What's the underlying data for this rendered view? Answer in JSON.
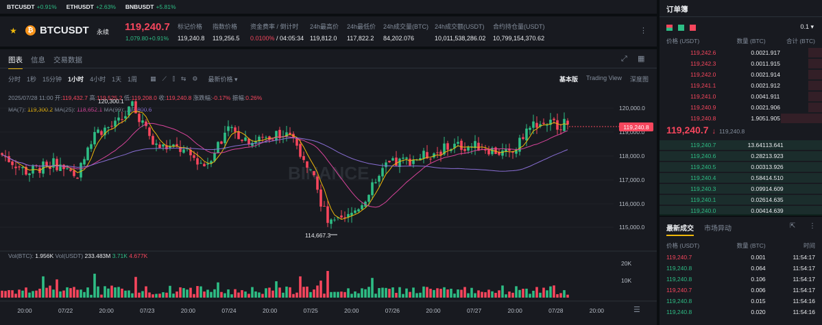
{
  "ticker": [
    {
      "sym": "BTCUSDT",
      "chg": "+0.91%"
    },
    {
      "sym": "ETHUSDT",
      "chg": "+2.63%"
    },
    {
      "sym": "BNBUSDT",
      "chg": "+5.81%"
    }
  ],
  "header": {
    "symbol": "BTCUSDT",
    "type": "永续",
    "price": "119,240.7",
    "change_abs": "1,079.80",
    "change_pct": "+0.91%",
    "stats": [
      {
        "label": "标记价格",
        "value": "119,240.8"
      },
      {
        "label": "指数价格",
        "value": "119,256.5"
      },
      {
        "label": "资金费率 / 倒计时",
        "value_a": "0.0100%",
        "value_b": "/ 04:05:34"
      },
      {
        "label": "24h最高价",
        "value": "119,812.0"
      },
      {
        "label": "24h最低价",
        "value": "117,822.2"
      },
      {
        "label": "24h成交量(BTC)",
        "value": "84,202.076"
      },
      {
        "label": "24h成交额(USDT)",
        "value": "10,011,538,286.02"
      },
      {
        "label": "合约持仓量(USDT)",
        "value": "10,799,154,370.62"
      }
    ]
  },
  "tabs": [
    "图表",
    "信息",
    "交易数据"
  ],
  "intervals": [
    "分时",
    "1秒",
    "15分钟",
    "1小时",
    "4小时",
    "1天",
    "1周"
  ],
  "latest_price_label": "最新价格",
  "views": [
    "基本版",
    "Trading View",
    "深度图"
  ],
  "ohlc": {
    "date": "2025/07/28 11:00",
    "open_label": "开:",
    "open": "119,432.7",
    "high_label": "高:",
    "high": "119,525.2",
    "low_label": "低:",
    "low": "119,208.0",
    "close_label": "收:",
    "close": "119,240.8",
    "chg_label": "涨跌幅:",
    "chg": "-0.17%",
    "amp_label": "振幅:",
    "amp": "0.26%"
  },
  "ma": {
    "ma7_label": "MA(7):",
    "ma7": "119,300.2",
    "ma25_label": "MA(25):",
    "ma25": "118,652.1",
    "ma99_label": "MA(99):",
    "ma99": "117,800.6"
  },
  "vol": {
    "btc_label": "Vol(BTC):",
    "btc": "1.956K",
    "usdt_label": "Vol(USDT)",
    "usdt": "233.483M",
    "a": "3.71K",
    "b": "4.677K"
  },
  "chart_data": {
    "type": "candlestick",
    "y_ticks": [
      "120,000.0",
      "119,000.0",
      "118,000.0",
      "117,000.0",
      "116,000.0",
      "115,000.0"
    ],
    "vol_ticks": [
      "20K",
      "10K"
    ],
    "x_ticks": [
      "20:00",
      "07/22",
      "20:00",
      "07/23",
      "20:00",
      "07/24",
      "20:00",
      "07/25",
      "20:00",
      "07/26",
      "20:00",
      "07/27",
      "20:00",
      "07/28",
      "20:00"
    ],
    "last_price": "119,240.8",
    "high_marker": "120,300.1",
    "low_marker": "114,667.3",
    "watermark": "BINANCE",
    "colors": {
      "up": "#2ebd85",
      "down": "#f6465d",
      "ma7": "#f0b90b",
      "ma25": "#d9449b",
      "ma99": "#8a6fd6"
    }
  },
  "orderbook": {
    "title": "订单簿",
    "step": "0.1",
    "cols": [
      "价格 (USDT)",
      "数量 (BTC)",
      "合计 (BTC)"
    ],
    "asks": [
      [
        "119,242.6",
        "0.002",
        "1.917"
      ],
      [
        "119,242.3",
        "0.001",
        "1.915"
      ],
      [
        "119,242.0",
        "0.002",
        "1.914"
      ],
      [
        "119,241.1",
        "0.002",
        "1.912"
      ],
      [
        "119,241.0",
        "0.004",
        "1.911"
      ],
      [
        "119,240.9",
        "0.002",
        "1.906"
      ],
      [
        "119,240.8",
        "1.905",
        "1.905"
      ]
    ],
    "mid": "119,240.7",
    "mid_arrow": "↓",
    "mid_mark": "119,240.8",
    "bids": [
      [
        "119,240.7",
        "13.641",
        "13.641"
      ],
      [
        "119,240.6",
        "0.282",
        "13.923"
      ],
      [
        "119,240.5",
        "0.003",
        "13.926"
      ],
      [
        "119,240.4",
        "0.584",
        "14.510"
      ],
      [
        "119,240.3",
        "0.099",
        "14.609"
      ],
      [
        "119,240.1",
        "0.026",
        "14.635"
      ],
      [
        "119,240.0",
        "0.004",
        "14.639"
      ]
    ]
  },
  "trades": {
    "tab1": "最新成交",
    "tab2": "市场异动",
    "cols": [
      "价格 (USDT)",
      "数量 (BTC)",
      "时间"
    ],
    "rows": [
      [
        "119,240.7",
        "0.001",
        "11:54:17",
        "dn"
      ],
      [
        "119,240.8",
        "0.064",
        "11:54:17",
        "up"
      ],
      [
        "119,240.8",
        "0.106",
        "11:54:17",
        "up"
      ],
      [
        "119,240.7",
        "0.006",
        "11:54:17",
        "dn"
      ],
      [
        "119,240.8",
        "0.015",
        "11:54:16",
        "up"
      ],
      [
        "119,240.8",
        "0.020",
        "11:54:16",
        "up"
      ]
    ]
  }
}
